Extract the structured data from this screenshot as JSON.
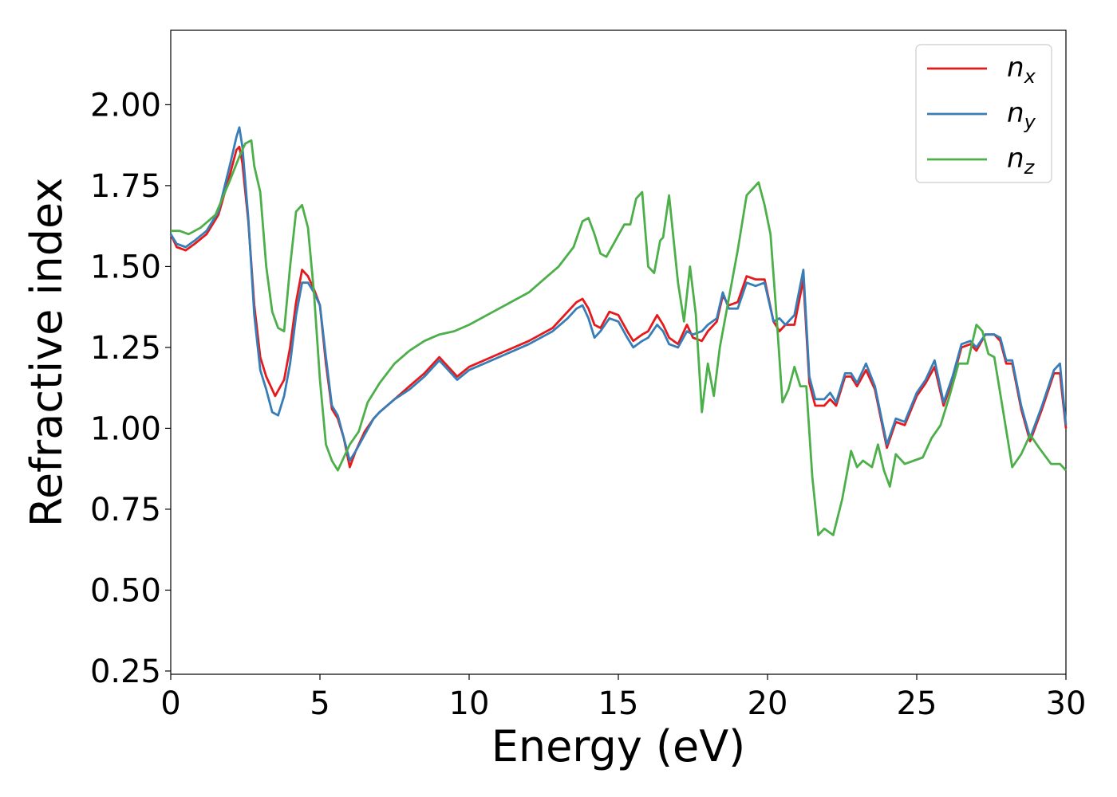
{
  "chart_data": {
    "type": "line",
    "title": "",
    "xlabel": "Energy (eV)",
    "ylabel": "Refractive index",
    "xlim": [
      0,
      30
    ],
    "ylim": [
      0.24,
      2.23
    ],
    "xticks": [
      0,
      5,
      10,
      15,
      20,
      25,
      30
    ],
    "xtick_labels": [
      "0",
      "5",
      "10",
      "15",
      "20",
      "25",
      "30"
    ],
    "yticks": [
      0.25,
      0.5,
      0.75,
      1.0,
      1.25,
      1.5,
      1.75,
      2.0
    ],
    "ytick_labels": [
      "0.25",
      "0.50",
      "0.75",
      "1.00",
      "1.25",
      "1.50",
      "1.75",
      "2.00"
    ],
    "grid": false,
    "legend_position": "top-right",
    "series": [
      {
        "name": "n",
        "subscript": "x",
        "color": "#e41a1c",
        "x": [
          0,
          0.2,
          0.5,
          0.8,
          1.2,
          1.6,
          2.0,
          2.2,
          2.3,
          2.4,
          2.6,
          2.8,
          3.0,
          3.2,
          3.5,
          3.8,
          4.0,
          4.2,
          4.4,
          4.6,
          4.8,
          5.0,
          5.2,
          5.4,
          5.6,
          5.8,
          6.0,
          6.2,
          6.5,
          6.8,
          7.0,
          7.5,
          8.0,
          8.5,
          9.0,
          9.3,
          9.6,
          10.0,
          11.0,
          12.0,
          12.8,
          13.3,
          13.6,
          13.8,
          14.0,
          14.2,
          14.4,
          14.7,
          15.0,
          15.3,
          15.5,
          15.8,
          16.0,
          16.3,
          16.5,
          16.7,
          17.0,
          17.3,
          17.5,
          17.8,
          18.0,
          18.3,
          18.5,
          18.7,
          19.0,
          19.3,
          19.6,
          19.9,
          20.2,
          20.4,
          20.6,
          20.9,
          21.2,
          21.4,
          21.6,
          21.9,
          22.1,
          22.3,
          22.6,
          22.8,
          23.0,
          23.3,
          23.6,
          24.0,
          24.3,
          24.6,
          25.0,
          25.3,
          25.6,
          25.9,
          26.2,
          26.5,
          26.8,
          27.0,
          27.3,
          27.6,
          27.8,
          28.0,
          28.2,
          28.5,
          28.8,
          29.2,
          29.6,
          29.8,
          30.0
        ],
        "y": [
          1.6,
          1.56,
          1.55,
          1.57,
          1.6,
          1.66,
          1.79,
          1.86,
          1.87,
          1.82,
          1.64,
          1.38,
          1.22,
          1.16,
          1.1,
          1.15,
          1.25,
          1.39,
          1.49,
          1.47,
          1.43,
          1.38,
          1.2,
          1.06,
          1.03,
          0.97,
          0.88,
          0.93,
          0.99,
          1.03,
          1.05,
          1.09,
          1.13,
          1.17,
          1.22,
          1.19,
          1.16,
          1.19,
          1.23,
          1.27,
          1.31,
          1.36,
          1.39,
          1.4,
          1.37,
          1.32,
          1.31,
          1.36,
          1.35,
          1.3,
          1.27,
          1.29,
          1.3,
          1.35,
          1.32,
          1.28,
          1.26,
          1.32,
          1.28,
          1.27,
          1.3,
          1.33,
          1.41,
          1.38,
          1.39,
          1.47,
          1.46,
          1.46,
          1.33,
          1.3,
          1.32,
          1.32,
          1.46,
          1.14,
          1.07,
          1.07,
          1.09,
          1.07,
          1.16,
          1.16,
          1.13,
          1.18,
          1.12,
          0.94,
          1.02,
          1.01,
          1.1,
          1.14,
          1.19,
          1.07,
          1.15,
          1.25,
          1.26,
          1.24,
          1.29,
          1.29,
          1.27,
          1.2,
          1.2,
          1.06,
          0.96,
          1.06,
          1.17,
          1.17,
          1.0
        ]
      },
      {
        "name": "n",
        "subscript": "y",
        "color": "#377eb8",
        "x": [
          0,
          0.2,
          0.5,
          0.8,
          1.2,
          1.6,
          2.0,
          2.2,
          2.3,
          2.4,
          2.6,
          2.8,
          3.0,
          3.2,
          3.4,
          3.6,
          3.8,
          4.0,
          4.2,
          4.4,
          4.6,
          4.8,
          5.0,
          5.2,
          5.4,
          5.6,
          5.8,
          6.0,
          6.2,
          6.5,
          6.8,
          7.0,
          7.5,
          8.0,
          8.5,
          9.0,
          9.3,
          9.6,
          10.0,
          11.0,
          12.0,
          12.8,
          13.3,
          13.6,
          13.8,
          14.0,
          14.2,
          14.4,
          14.7,
          15.0,
          15.3,
          15.5,
          15.8,
          16.0,
          16.3,
          16.5,
          16.7,
          17.0,
          17.3,
          17.5,
          17.8,
          18.0,
          18.3,
          18.5,
          18.7,
          19.0,
          19.3,
          19.6,
          19.9,
          20.2,
          20.4,
          20.6,
          20.9,
          21.2,
          21.4,
          21.6,
          21.9,
          22.1,
          22.3,
          22.6,
          22.8,
          23.0,
          23.3,
          23.6,
          24.0,
          24.3,
          24.6,
          25.0,
          25.3,
          25.6,
          25.9,
          26.2,
          26.5,
          26.8,
          27.0,
          27.3,
          27.6,
          27.8,
          28.0,
          28.2,
          28.5,
          28.8,
          29.2,
          29.6,
          29.8,
          30.0
        ],
        "y": [
          1.6,
          1.57,
          1.56,
          1.58,
          1.61,
          1.67,
          1.82,
          1.9,
          1.93,
          1.87,
          1.65,
          1.35,
          1.18,
          1.12,
          1.05,
          1.04,
          1.1,
          1.2,
          1.35,
          1.45,
          1.45,
          1.42,
          1.38,
          1.22,
          1.07,
          1.04,
          0.97,
          0.9,
          0.93,
          0.98,
          1.03,
          1.05,
          1.09,
          1.12,
          1.16,
          1.21,
          1.18,
          1.15,
          1.18,
          1.22,
          1.26,
          1.3,
          1.34,
          1.37,
          1.38,
          1.34,
          1.28,
          1.3,
          1.34,
          1.33,
          1.28,
          1.25,
          1.27,
          1.28,
          1.32,
          1.3,
          1.26,
          1.25,
          1.3,
          1.29,
          1.3,
          1.32,
          1.34,
          1.42,
          1.37,
          1.37,
          1.45,
          1.44,
          1.45,
          1.33,
          1.34,
          1.32,
          1.35,
          1.49,
          1.16,
          1.09,
          1.09,
          1.11,
          1.08,
          1.17,
          1.17,
          1.14,
          1.2,
          1.13,
          0.95,
          1.03,
          1.02,
          1.11,
          1.15,
          1.21,
          1.08,
          1.16,
          1.26,
          1.27,
          1.25,
          1.29,
          1.29,
          1.28,
          1.21,
          1.21,
          1.07,
          0.97,
          1.07,
          1.18,
          1.2,
          1.01
        ]
      },
      {
        "name": "n",
        "subscript": "z",
        "color": "#4daf4a",
        "x": [
          0,
          0.3,
          0.6,
          1.0,
          1.5,
          2.0,
          2.3,
          2.5,
          2.7,
          2.8,
          3.0,
          3.2,
          3.4,
          3.6,
          3.8,
          4.0,
          4.2,
          4.4,
          4.6,
          4.8,
          5.0,
          5.2,
          5.4,
          5.6,
          5.8,
          6.0,
          6.3,
          6.6,
          7.0,
          7.5,
          8.0,
          8.5,
          9.0,
          9.5,
          10.0,
          11.0,
          12.0,
          12.5,
          13.0,
          13.5,
          13.8,
          14.0,
          14.2,
          14.4,
          14.6,
          14.9,
          15.2,
          15.4,
          15.6,
          15.8,
          16.0,
          16.2,
          16.4,
          16.5,
          16.7,
          17.0,
          17.2,
          17.4,
          17.6,
          17.8,
          18.0,
          18.2,
          18.4,
          18.7,
          19.0,
          19.3,
          19.5,
          19.7,
          19.9,
          20.1,
          20.3,
          20.5,
          20.7,
          20.9,
          21.1,
          21.3,
          21.5,
          21.7,
          21.9,
          22.2,
          22.5,
          22.8,
          23.0,
          23.2,
          23.5,
          23.7,
          23.9,
          24.1,
          24.3,
          24.6,
          24.9,
          25.2,
          25.5,
          25.8,
          26.1,
          26.4,
          26.7,
          27.0,
          27.2,
          27.4,
          27.6,
          27.9,
          28.2,
          28.5,
          28.8,
          29.1,
          29.5,
          29.8,
          30.0
        ],
        "y": [
          1.61,
          1.61,
          1.6,
          1.62,
          1.66,
          1.77,
          1.84,
          1.88,
          1.89,
          1.81,
          1.73,
          1.5,
          1.36,
          1.31,
          1.3,
          1.5,
          1.67,
          1.69,
          1.62,
          1.42,
          1.15,
          0.95,
          0.9,
          0.87,
          0.91,
          0.95,
          0.99,
          1.08,
          1.14,
          1.2,
          1.24,
          1.27,
          1.29,
          1.3,
          1.32,
          1.37,
          1.42,
          1.46,
          1.5,
          1.56,
          1.64,
          1.65,
          1.6,
          1.54,
          1.53,
          1.58,
          1.63,
          1.63,
          1.71,
          1.73,
          1.5,
          1.48,
          1.58,
          1.59,
          1.72,
          1.45,
          1.33,
          1.5,
          1.35,
          1.05,
          1.2,
          1.1,
          1.25,
          1.4,
          1.55,
          1.72,
          1.74,
          1.76,
          1.69,
          1.6,
          1.35,
          1.08,
          1.12,
          1.19,
          1.13,
          1.13,
          0.85,
          0.67,
          0.69,
          0.67,
          0.78,
          0.93,
          0.88,
          0.9,
          0.88,
          0.95,
          0.87,
          0.82,
          0.92,
          0.89,
          0.9,
          0.91,
          0.97,
          1.01,
          1.1,
          1.2,
          1.2,
          1.32,
          1.3,
          1.23,
          1.22,
          1.05,
          0.88,
          0.92,
          0.98,
          0.94,
          0.89,
          0.89,
          0.87
        ]
      }
    ]
  }
}
